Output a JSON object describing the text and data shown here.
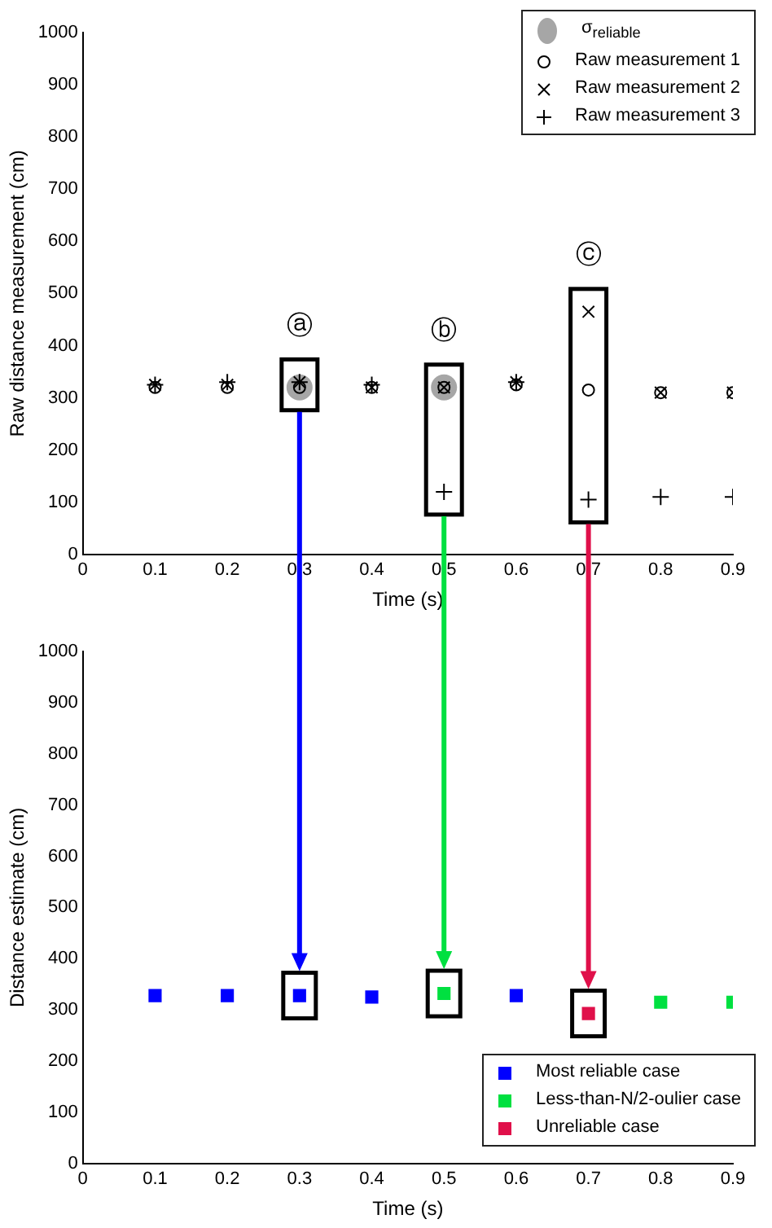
{
  "chart_data": [
    {
      "type": "scatter",
      "xlabel": "Time (s)",
      "ylabel": "Raw distance measurement (cm)",
      "xlim": [
        0,
        0.9
      ],
      "xticks": [
        0,
        0.1,
        0.2,
        0.3,
        0.4,
        0.5,
        0.6,
        0.7,
        0.8,
        0.9
      ],
      "ylim": [
        0,
        1000
      ],
      "yticks": [
        0,
        100,
        200,
        300,
        400,
        500,
        600,
        700,
        800,
        900,
        1000
      ],
      "grid": false,
      "legend": "top right",
      "annotations": [
        {
          "text": "ⓐ",
          "x": 0.3,
          "y": 330
        },
        {
          "text": "ⓑ",
          "x": 0.5,
          "y": 320
        },
        {
          "text": "ⓒ",
          "x": 0.7,
          "y": 465
        }
      ],
      "series": [
        {
          "name": "σ$_{reliable}$",
          "type": "bubble",
          "color": "#a6a6a6",
          "x": [
            0.3,
            0.5
          ],
          "values": [
            320,
            320
          ],
          "sizes": [
            1,
            1
          ]
        },
        {
          "name": "Raw measurement 1",
          "color": "#000000",
          "marker": "circle",
          "x": [
            0.1,
            0.2,
            0.3,
            0.4,
            0.5,
            0.6,
            0.7,
            0.8,
            0.9
          ],
          "values": [
            320,
            320,
            320,
            320,
            320,
            325,
            315,
            310,
            310
          ]
        },
        {
          "name": "Raw measurement 2",
          "color": "#000000",
          "marker": "cross",
          "x": [
            0.1,
            0.2,
            0.3,
            0.4,
            0.5,
            0.6,
            0.7,
            0.8,
            0.9
          ],
          "values": [
            325,
            325,
            330,
            320,
            320,
            330,
            465,
            310,
            310
          ]
        },
        {
          "name": "Raw measurement 3",
          "color": "#000000",
          "marker": "plus",
          "x": [
            0.1,
            0.2,
            0.3,
            0.4,
            0.5,
            0.6,
            0.7,
            0.8,
            0.9
          ],
          "values": [
            325,
            330,
            330,
            325,
            120,
            330,
            105,
            110,
            110
          ]
        }
      ]
    },
    {
      "type": "scatter",
      "xlabel": "Time (s)",
      "ylabel": "Distance estimate (cm)",
      "xlim": [
        0,
        0.9
      ],
      "xticks": [
        0,
        0.1,
        0.2,
        0.3,
        0.4,
        0.5,
        0.6,
        0.7,
        0.8,
        0.9
      ],
      "ylim": [
        0,
        1000
      ],
      "yticks": [
        0,
        100,
        200,
        300,
        400,
        500,
        600,
        700,
        800,
        900,
        1000
      ],
      "grid": false,
      "legend": "bottom right",
      "series": [
        {
          "name": "Most reliable case",
          "color": "#0000ff",
          "marker": "square",
          "x": [
            0.1,
            0.2,
            0.3,
            0.4,
            0.6
          ],
          "values": [
            328,
            328,
            328,
            325,
            328
          ]
        },
        {
          "name": "Less-than-N/2-oulier case",
          "color": "#00e040",
          "marker": "square",
          "x": [
            0.5,
            0.8,
            0.9
          ],
          "values": [
            332,
            315,
            315
          ]
        },
        {
          "name": "Unreliable case",
          "color": "#e0104a",
          "marker": "square",
          "x": [
            0.7
          ],
          "values": [
            293
          ]
        }
      ]
    }
  ]
}
